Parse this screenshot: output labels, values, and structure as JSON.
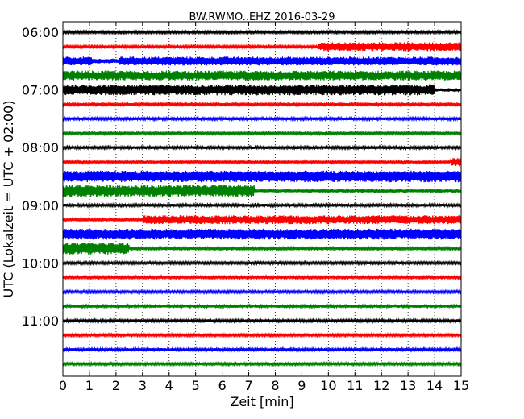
{
  "chart_data": {
    "type": "line",
    "title": "BW.RWMO..EHZ 2016-03-29",
    "xlabel": "Zeit  [min]",
    "ylabel": "UTC (Lokalzeit = UTC + 02:00)",
    "xlim": [
      0,
      15
    ],
    "xticks": [
      0,
      1,
      2,
      3,
      4,
      5,
      6,
      7,
      8,
      9,
      10,
      11,
      12,
      13,
      14,
      15
    ],
    "xtick_labels": [
      "0",
      "1",
      "2",
      "3",
      "4",
      "5",
      "6",
      "7",
      "8",
      "9",
      "10",
      "11",
      "12",
      "13",
      "14",
      "15"
    ],
    "ytick_labels": [
      "06:00",
      "07:00",
      "08:00",
      "09:00",
      "10:00",
      "11:00"
    ],
    "ytick_rows": [
      0,
      4,
      8,
      12,
      16,
      20
    ],
    "grid": "vertical dotted",
    "row_minutes": 15,
    "colors": [
      "#000000",
      "#ff0000",
      "#0000ff",
      "#008000"
    ],
    "series": [
      {
        "start": "06:00",
        "segments": [
          [
            0,
            15,
            0.18
          ]
        ]
      },
      {
        "start": "06:15",
        "segments": [
          [
            0,
            9.6,
            0.18
          ],
          [
            9.6,
            15,
            0.65
          ]
        ]
      },
      {
        "start": "06:30",
        "segments": [
          [
            0,
            1.1,
            0.65
          ],
          [
            1.1,
            2.1,
            0.35
          ],
          [
            2.1,
            15,
            0.65
          ]
        ]
      },
      {
        "start": "06:45",
        "segments": [
          [
            0,
            15,
            0.72
          ]
        ]
      },
      {
        "start": "07:00",
        "segments": [
          [
            0,
            14.0,
            0.8
          ],
          [
            14.0,
            15,
            0.25
          ]
        ]
      },
      {
        "start": "07:15",
        "segments": [
          [
            0,
            15,
            0.2
          ]
        ]
      },
      {
        "start": "07:30",
        "segments": [
          [
            0,
            15,
            0.2
          ]
        ]
      },
      {
        "start": "07:45",
        "segments": [
          [
            0,
            15,
            0.2
          ]
        ]
      },
      {
        "start": "08:00",
        "segments": [
          [
            0,
            15,
            0.2
          ]
        ]
      },
      {
        "start": "08:15",
        "segments": [
          [
            0,
            14.6,
            0.2
          ],
          [
            14.6,
            15,
            0.65
          ]
        ]
      },
      {
        "start": "08:30",
        "segments": [
          [
            0,
            15,
            0.85
          ]
        ]
      },
      {
        "start": "08:45",
        "segments": [
          [
            0,
            7.2,
            0.9
          ],
          [
            7.2,
            15,
            0.25
          ]
        ]
      },
      {
        "start": "09:00",
        "segments": [
          [
            0,
            15,
            0.2
          ]
        ]
      },
      {
        "start": "09:15",
        "segments": [
          [
            0,
            3.0,
            0.2
          ],
          [
            3.0,
            15,
            0.65
          ]
        ]
      },
      {
        "start": "09:30",
        "segments": [
          [
            0,
            15,
            0.8
          ]
        ]
      },
      {
        "start": "09:45",
        "segments": [
          [
            0,
            2.5,
            0.9
          ],
          [
            2.5,
            15,
            0.2
          ]
        ]
      },
      {
        "start": "10:00",
        "segments": [
          [
            0,
            15,
            0.18
          ]
        ]
      },
      {
        "start": "10:15",
        "segments": [
          [
            0,
            15,
            0.18
          ]
        ]
      },
      {
        "start": "10:30",
        "segments": [
          [
            0,
            15,
            0.18
          ]
        ]
      },
      {
        "start": "10:45",
        "segments": [
          [
            0,
            15,
            0.22
          ]
        ]
      },
      {
        "start": "11:00",
        "segments": [
          [
            0,
            15,
            0.2
          ]
        ]
      },
      {
        "start": "11:15",
        "segments": [
          [
            0,
            15,
            0.18
          ]
        ]
      },
      {
        "start": "11:30",
        "segments": [
          [
            0,
            15,
            0.2
          ]
        ]
      },
      {
        "start": "11:45",
        "segments": [
          [
            0,
            15,
            0.18
          ]
        ]
      }
    ]
  }
}
